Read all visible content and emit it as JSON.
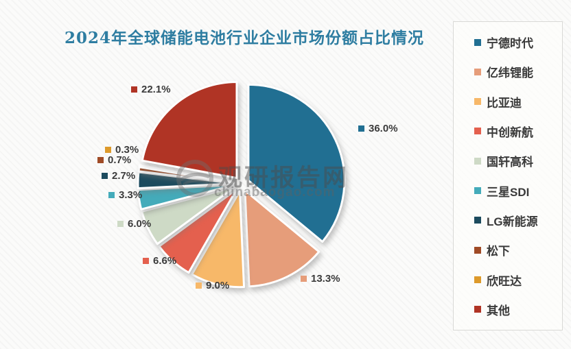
{
  "watermark": {
    "line1": "观研报告网",
    "line2": "chinabaogao.com"
  },
  "chart_data": {
    "type": "pie",
    "title": "2024年全球储能电池行业企业市场份额占比情况",
    "categories": [
      "宁德时代",
      "亿纬锂能",
      "比亚迪",
      "中创新航",
      "国轩高科",
      "三星SDI",
      "LG新能源",
      "松下",
      "欣旺达",
      "其他"
    ],
    "values": [
      36.0,
      13.3,
      9.0,
      6.6,
      6.0,
      3.3,
      2.7,
      0.7,
      0.3,
      22.1
    ],
    "point_labels": [
      "36.0%",
      "13.3%",
      "9.0%",
      "6.6%",
      "6.0%",
      "3.3%",
      "2.7%",
      "0.7%",
      "0.3%",
      "22.1%"
    ],
    "colors": [
      "#216f92",
      "#e69d7a",
      "#f7b869",
      "#e4604e",
      "#cedac6",
      "#44abba",
      "#1c4b5e",
      "#a04b26",
      "#dd9a2b",
      "#b03425"
    ],
    "title_color": "#2e7da1",
    "legend_position": "right",
    "start_angle_deg": 0,
    "direction": "clockwise",
    "exploded": true,
    "unit": "%"
  }
}
